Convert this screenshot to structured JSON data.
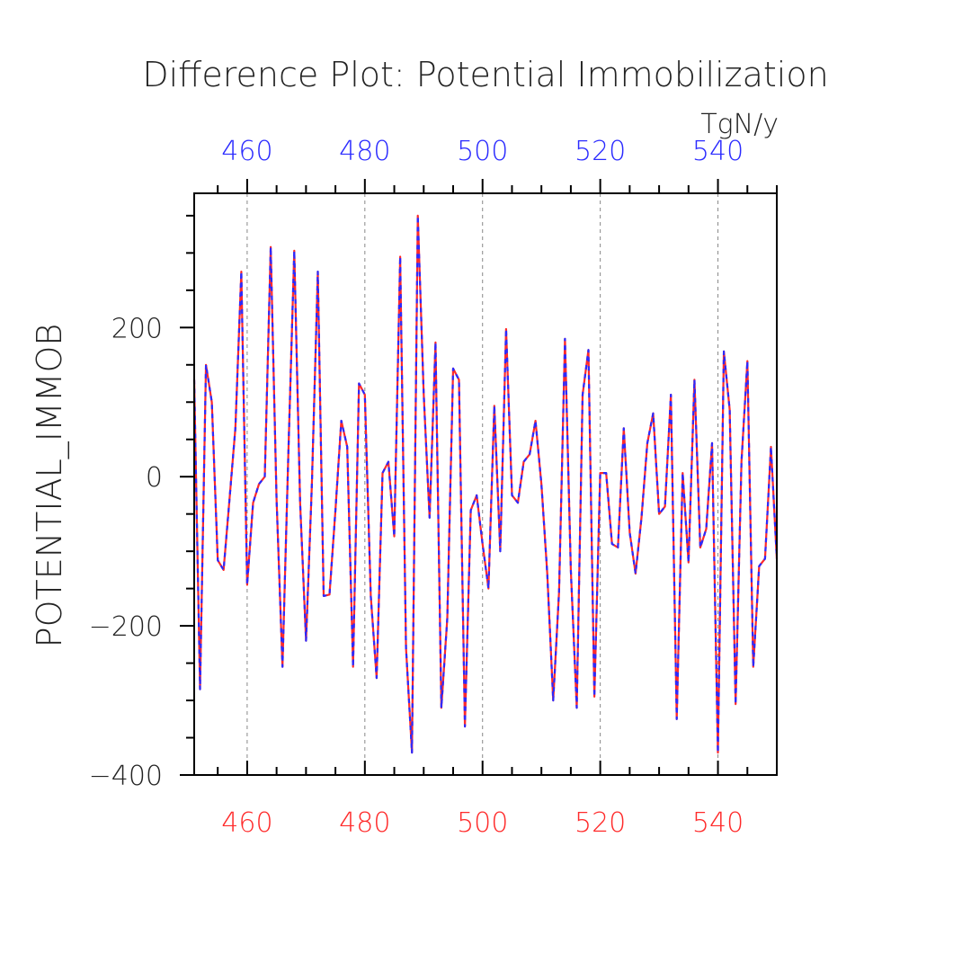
{
  "chart_data": {
    "type": "line",
    "title": "Difference Plot: Potential Immobilization",
    "ylabel": "POTENTIAL_IMMOB",
    "units": "TgN/y",
    "xlim": [
      451,
      550
    ],
    "ylim": [
      -400,
      380
    ],
    "xticks": [
      460,
      480,
      500,
      520,
      540
    ],
    "yticks": [
      -400,
      -200,
      0,
      200
    ],
    "colors": {
      "bottom_axis": "#ff2a2a",
      "top_axis": "#2a2aff",
      "series_a": "#ff2a2a",
      "series_b": "#2a2aff"
    },
    "grid": "vertical dashed at major x ticks",
    "x": [
      451,
      452,
      453,
      454,
      455,
      456,
      457,
      458,
      459,
      460,
      461,
      462,
      463,
      464,
      465,
      466,
      467,
      468,
      469,
      470,
      471,
      472,
      473,
      474,
      475,
      476,
      477,
      478,
      479,
      480,
      481,
      482,
      483,
      484,
      485,
      486,
      487,
      488,
      489,
      490,
      491,
      492,
      493,
      494,
      495,
      496,
      497,
      498,
      499,
      500,
      501,
      502,
      503,
      504,
      505,
      506,
      507,
      508,
      509,
      510,
      511,
      512,
      513,
      514,
      515,
      516,
      517,
      518,
      519,
      520,
      521,
      522,
      523,
      524,
      525,
      526,
      527,
      528,
      529,
      530,
      531,
      532,
      533,
      534,
      535,
      536,
      537,
      538,
      539,
      540,
      541,
      542,
      543,
      544,
      545,
      546,
      547,
      548,
      549,
      550
    ],
    "y": [
      130,
      -285,
      150,
      100,
      -112,
      -125,
      -30,
      65,
      275,
      -145,
      -35,
      -10,
      0,
      308,
      -30,
      -255,
      30,
      303,
      -35,
      -220,
      -10,
      275,
      -160,
      -158,
      -45,
      75,
      40,
      -255,
      125,
      110,
      -160,
      -270,
      5,
      20,
      -80,
      295,
      -230,
      -370,
      350,
      110,
      -55,
      180,
      -310,
      -190,
      145,
      130,
      -335,
      -45,
      -25,
      -90,
      -150,
      95,
      -100,
      198,
      -25,
      -35,
      20,
      30,
      75,
      -10,
      -130,
      -300,
      -155,
      185,
      -125,
      -310,
      110,
      170,
      -295,
      5,
      5,
      -90,
      -95,
      65,
      -75,
      -130,
      -55,
      45,
      85,
      -50,
      -40,
      110,
      -325,
      5,
      -115,
      130,
      -95,
      -70,
      45,
      -370,
      168,
      90,
      -305,
      20,
      155,
      -255,
      -120,
      -110,
      40,
      -110
    ],
    "series": [
      {
        "name": "",
        "style": "solid",
        "color": "#ff2a2a"
      },
      {
        "name": "",
        "style": "dashed",
        "color": "#2a2aff"
      }
    ]
  }
}
